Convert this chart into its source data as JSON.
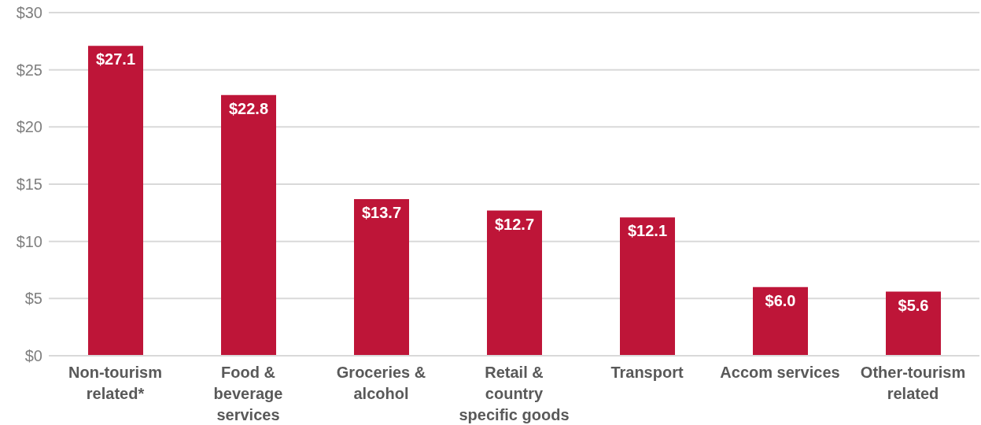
{
  "chart_data": {
    "type": "bar",
    "categories": [
      "Non-tourism related*",
      "Food & beverage services",
      "Groceries & alcohol",
      "Retail & country specific goods",
      "Transport",
      "Accom services",
      "Other-tourism related"
    ],
    "values": [
      27.1,
      22.8,
      13.7,
      12.7,
      12.1,
      6.0,
      5.6
    ],
    "value_labels": [
      "$27.1",
      "$22.8",
      "$13.7",
      "$12.7",
      "$12.1",
      "$6.0",
      "$5.6"
    ],
    "color": "#be1538",
    "ylim": [
      0,
      30
    ],
    "yticks": [
      {
        "value": 0,
        "label": "$0"
      },
      {
        "value": 5,
        "label": "$5"
      },
      {
        "value": 10,
        "label": "$10"
      },
      {
        "value": 15,
        "label": "$15"
      },
      {
        "value": 20,
        "label": "$20"
      },
      {
        "value": 25,
        "label": "$25"
      },
      {
        "value": 30,
        "label": "$30"
      }
    ],
    "grid": "y",
    "legend": false
  }
}
